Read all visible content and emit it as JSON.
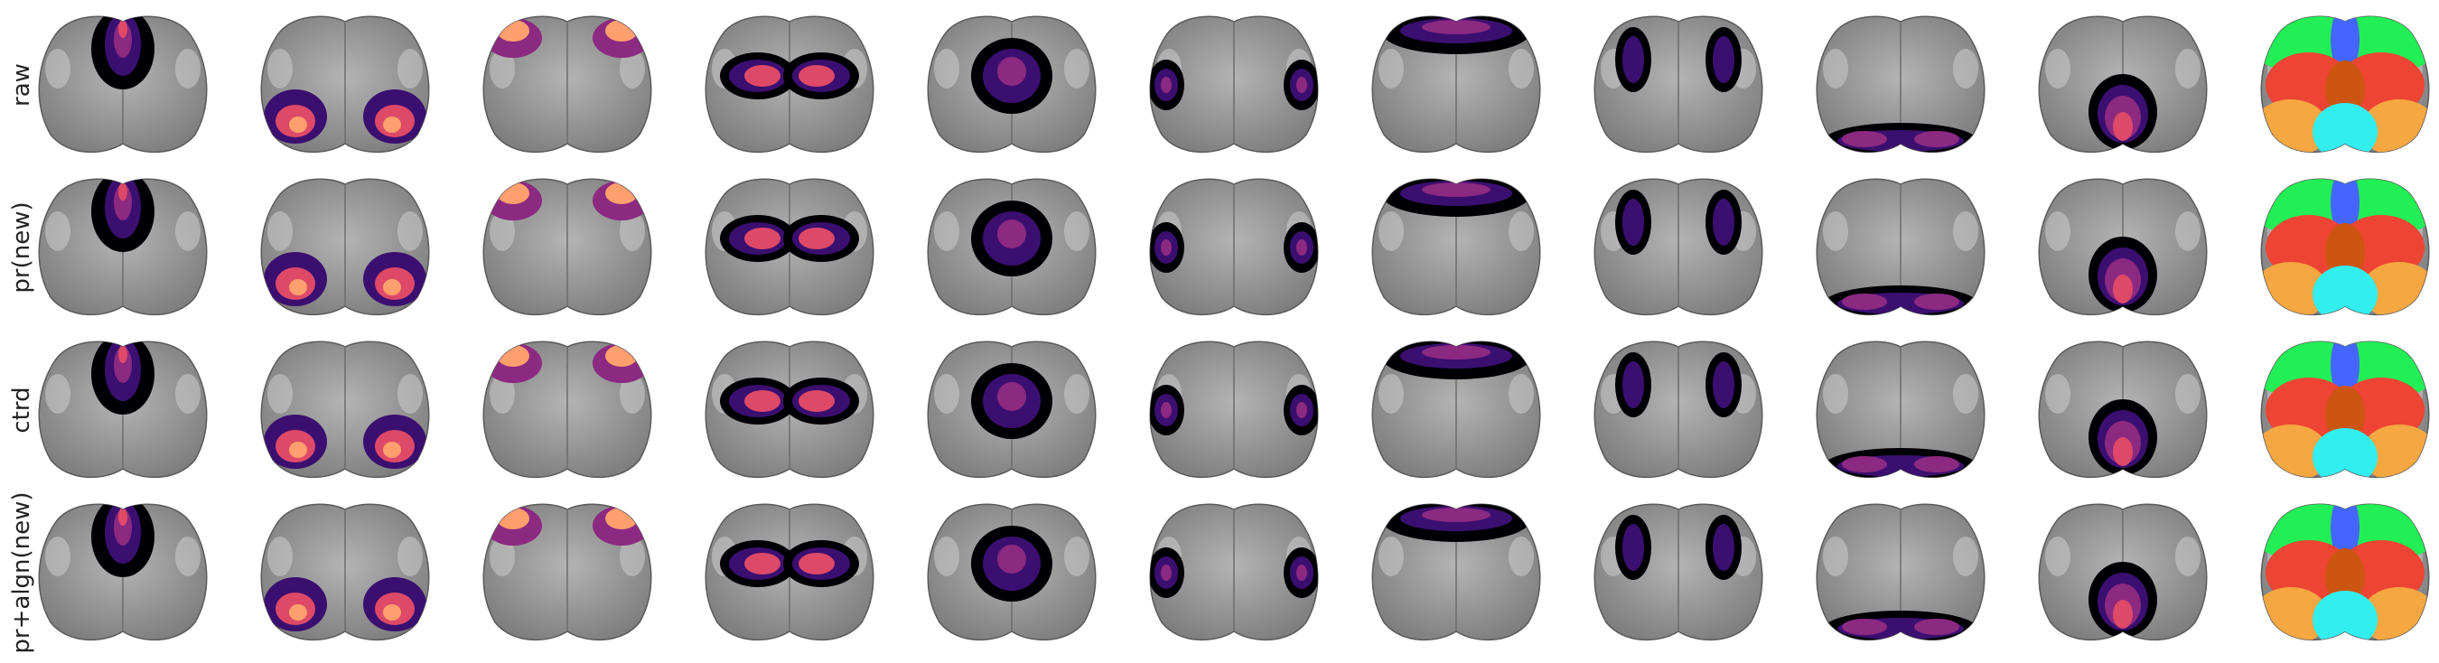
{
  "row_labels": [
    "raw",
    "pr(new)",
    "ctrd",
    "pr+algn(new)"
  ]
}
